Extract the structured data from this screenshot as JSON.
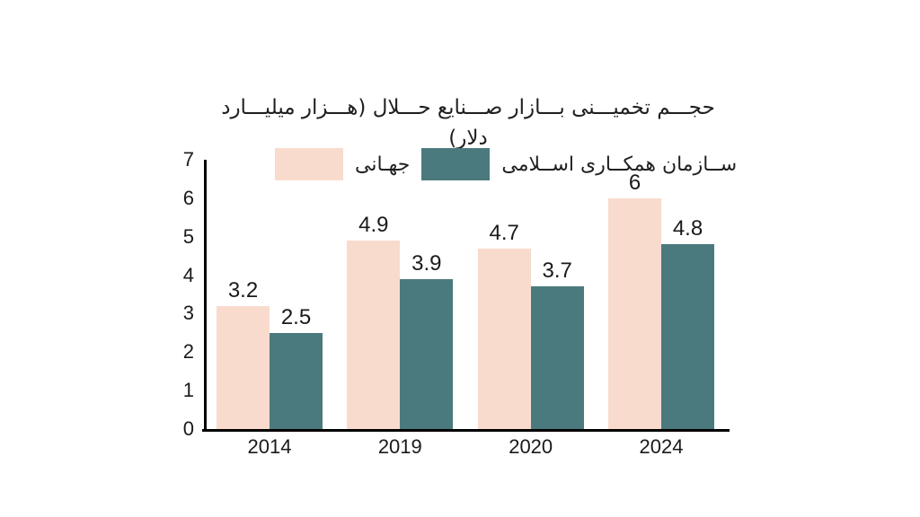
{
  "display": {
    "title": "حجـــم تخمیـــنی بـــازار صـــنایع حـــلال (هـــزار میلیـــارد دلار)",
    "legend_global": "جهـانی",
    "legend_oic": "ســازمان همکــاری اســلامی"
  },
  "colors": {
    "global": "#f8dbcd",
    "oic": "#4b7a7e",
    "axis": "#000000",
    "text": "#1a1a1a",
    "background": "#ffffff"
  },
  "chart_data": {
    "type": "bar",
    "title": "حجم تخمینی بازار صنایع حلال (هزار میلیارد دلار)",
    "categories": [
      "2014",
      "2019",
      "2020",
      "2024"
    ],
    "series": [
      {
        "name": "جهانی",
        "color_key": "global",
        "values": [
          3.2,
          4.9,
          4.7,
          6
        ]
      },
      {
        "name": "سازمان همکاری اسلامی",
        "color_key": "oic",
        "values": [
          2.5,
          3.9,
          3.7,
          4.8
        ]
      }
    ],
    "ylim": [
      0,
      7
    ],
    "yticks": [
      0,
      1,
      2,
      3,
      4,
      5,
      6,
      7
    ],
    "grid": false,
    "value_labels": true,
    "legend_position": "top",
    "rtl": true,
    "xlabel": "",
    "ylabel": ""
  }
}
